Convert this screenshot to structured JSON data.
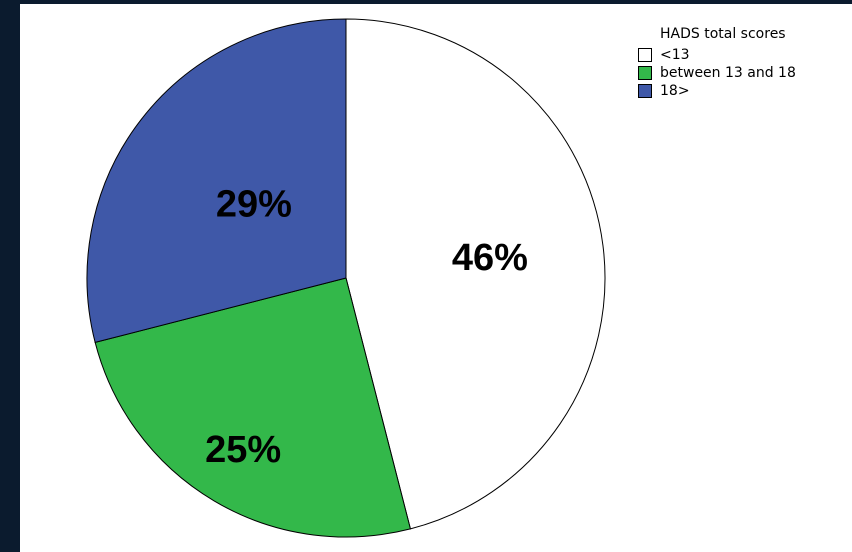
{
  "chart_data": {
    "type": "pie",
    "legend_title": "HADS total scores",
    "categories": [
      "<13",
      "between 13 and 18",
      "18>"
    ],
    "values": [
      46,
      25,
      29
    ],
    "labels": [
      "46%",
      "25%",
      "29%"
    ],
    "colors": [
      "#ffffff",
      "#33b84a",
      "#3f58a8"
    ],
    "start_angle_deg": 0,
    "direction": "clockwise",
    "legend_position": "top-right"
  }
}
